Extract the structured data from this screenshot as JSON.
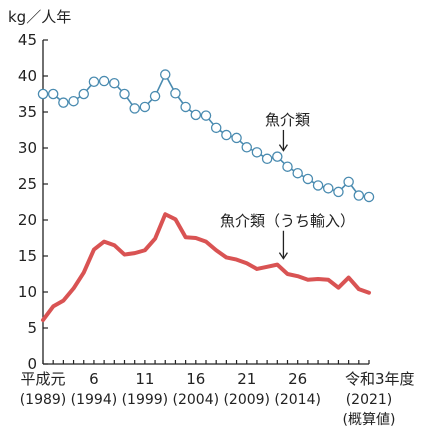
{
  "chart_data": {
    "type": "line",
    "title": "",
    "ylabel": "kg／人年",
    "xlabel": "",
    "ylim": [
      0,
      45
    ],
    "yticks": [
      0,
      5,
      10,
      15,
      20,
      25,
      30,
      35,
      40,
      45
    ],
    "grid": false,
    "x": [
      1989,
      1990,
      1991,
      1992,
      1993,
      1994,
      1995,
      1996,
      1997,
      1998,
      1999,
      2000,
      2001,
      2002,
      2003,
      2004,
      2005,
      2006,
      2007,
      2008,
      2009,
      2010,
      2011,
      2012,
      2013,
      2014,
      2015,
      2016,
      2017,
      2018,
      2019,
      2020,
      2021
    ],
    "xlim": [
      1989,
      2021
    ],
    "x_tick_labels": [
      {
        "x": 1989,
        "label": "平成元",
        "sub": "(1989)"
      },
      {
        "x": 1994,
        "label": "6",
        "sub": "(1994)"
      },
      {
        "x": 1999,
        "label": "11",
        "sub": "(1999)"
      },
      {
        "x": 2004,
        "label": "16",
        "sub": "(2004)"
      },
      {
        "x": 2009,
        "label": "21",
        "sub": "(2009)"
      },
      {
        "x": 2014,
        "label": "26",
        "sub": "(2014)"
      },
      {
        "x": 2021,
        "label": "令和3年度",
        "sub": "(2021)",
        "sub2": "(概算値)"
      }
    ],
    "series": [
      {
        "name": "魚介類",
        "color": "#4a8bb0",
        "marker": "circle",
        "marker_fill": "#ffffff",
        "values": [
          37.5,
          37.5,
          36.3,
          36.5,
          37.5,
          39.2,
          39.3,
          39.0,
          37.5,
          35.5,
          35.7,
          37.2,
          40.2,
          37.6,
          35.7,
          34.6,
          34.5,
          32.8,
          31.8,
          31.4,
          30.1,
          29.4,
          28.5,
          28.8,
          27.4,
          26.5,
          25.7,
          24.8,
          24.4,
          23.9,
          25.3,
          23.4,
          23.2
        ],
        "label_x": 2013,
        "label_y": 33.2,
        "arrow_to_x": 2012.6,
        "arrow_to_y": 28.8
      },
      {
        "name": "魚介類（うち輸入）",
        "color": "#d95353",
        "marker": "none",
        "values": [
          6.1,
          8.0,
          8.8,
          10.5,
          12.7,
          15.9,
          17.0,
          16.5,
          15.2,
          15.4,
          15.8,
          17.4,
          20.8,
          20.1,
          17.6,
          17.5,
          17.0,
          15.8,
          14.8,
          14.5,
          14.0,
          13.2,
          13.5,
          13.8,
          12.5,
          12.2,
          11.7,
          11.8,
          11.7,
          10.6,
          12.0,
          10.4,
          9.9
        ],
        "label_x": 2013,
        "label_y": 19.2,
        "arrow_to_x": 2012.6,
        "arrow_to_y": 13.8
      }
    ]
  }
}
